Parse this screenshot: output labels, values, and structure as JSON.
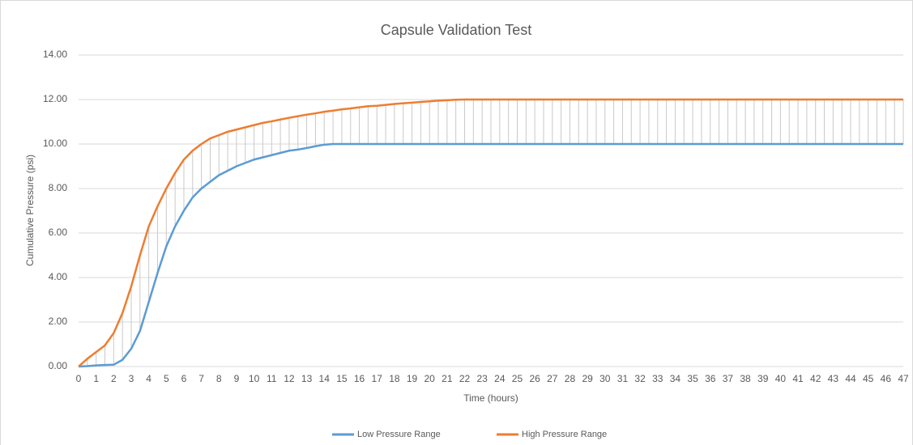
{
  "chart_data": {
    "type": "hilo_line",
    "title": "Capsule Validation Test",
    "x_label": "Time (hours)",
    "y_label": "Cumulative Pressure (psi)",
    "x": [
      0,
      0.5,
      1,
      1.5,
      2,
      2.5,
      3,
      3.5,
      4,
      4.5,
      5,
      5.5,
      6,
      6.5,
      7,
      7.5,
      8,
      8.5,
      9,
      9.5,
      10,
      10.5,
      11,
      11.5,
      12,
      12.5,
      13,
      13.5,
      14,
      14.5,
      15,
      15.5,
      16,
      16.5,
      17,
      17.5,
      18,
      18.5,
      19,
      19.5,
      20,
      20.5,
      21,
      21.5,
      22,
      22.5,
      23,
      23.5,
      24,
      24.5,
      25,
      25.5,
      26,
      26.5,
      27,
      27.5,
      28,
      28.5,
      29,
      29.5,
      30,
      30.5,
      31,
      31.5,
      32,
      32.5,
      33,
      33.5,
      34,
      34.5,
      35,
      35.5,
      36,
      36.5,
      37,
      37.5,
      38,
      38.5,
      39,
      39.5,
      40,
      40.5,
      41,
      41.5,
      42,
      42.5,
      43,
      43.5,
      44,
      44.5,
      45,
      45.5,
      46,
      46.5,
      47
    ],
    "series": [
      {
        "name": "Low Pressure Range",
        "color": "#5b9bd5",
        "values": [
          0,
          0.02,
          0.05,
          0.07,
          0.08,
          0.3,
          0.8,
          1.6,
          2.9,
          4.2,
          5.4,
          6.3,
          7,
          7.6,
          8,
          8.3,
          8.6,
          8.8,
          9,
          9.15,
          9.3,
          9.4,
          9.5,
          9.6,
          9.7,
          9.75,
          9.82,
          9.9,
          9.97,
          10,
          10,
          10,
          10,
          10,
          10,
          10,
          10,
          10,
          10,
          10,
          10,
          10,
          10,
          10,
          10,
          10,
          10,
          10,
          10,
          10,
          10,
          10,
          10,
          10,
          10,
          10,
          10,
          10,
          10,
          10,
          10,
          10,
          10,
          10,
          10,
          10,
          10,
          10,
          10,
          10,
          10,
          10,
          10,
          10,
          10,
          10,
          10,
          10,
          10,
          10,
          10,
          10,
          10,
          10,
          10,
          10,
          10,
          10,
          10,
          10,
          10,
          10,
          10,
          10,
          10
        ]
      },
      {
        "name": "High Pressure Range",
        "color": "#ed7d31",
        "values": [
          0,
          0.35,
          0.65,
          0.95,
          1.5,
          2.4,
          3.6,
          5,
          6.3,
          7.2,
          8,
          8.7,
          9.3,
          9.7,
          10,
          10.25,
          10.4,
          10.55,
          10.65,
          10.75,
          10.85,
          10.95,
          11.02,
          11.1,
          11.18,
          11.25,
          11.32,
          11.38,
          11.45,
          11.5,
          11.56,
          11.6,
          11.65,
          11.7,
          11.72,
          11.76,
          11.8,
          11.83,
          11.86,
          11.89,
          11.92,
          11.95,
          11.97,
          11.99,
          12,
          12,
          12,
          12,
          12,
          12,
          12,
          12,
          12,
          12,
          12,
          12,
          12,
          12,
          12,
          12,
          12,
          12,
          12,
          12,
          12,
          12,
          12,
          12,
          12,
          12,
          12,
          12,
          12,
          12,
          12,
          12,
          12,
          12,
          12,
          12,
          12,
          12,
          12,
          12,
          12,
          12,
          12,
          12,
          12,
          12,
          12,
          12,
          12,
          12,
          12
        ]
      }
    ],
    "hi_lo_color": "#c9c9c9",
    "xlim": [
      0,
      47
    ],
    "xticks": [
      0,
      1,
      2,
      3,
      4,
      5,
      6,
      7,
      8,
      9,
      10,
      11,
      12,
      13,
      14,
      15,
      16,
      17,
      18,
      19,
      20,
      21,
      22,
      23,
      24,
      25,
      26,
      27,
      28,
      29,
      30,
      31,
      32,
      33,
      34,
      35,
      36,
      37,
      38,
      39,
      40,
      41,
      42,
      43,
      44,
      45,
      46,
      47
    ],
    "ylim": [
      0,
      14
    ],
    "yticks": [
      {
        "value": 0,
        "label": "0.00"
      },
      {
        "value": 2,
        "label": "2.00"
      },
      {
        "value": 4,
        "label": "4.00"
      },
      {
        "value": 6,
        "label": "6.00"
      },
      {
        "value": 8,
        "label": "8.00"
      },
      {
        "value": 10,
        "label": "10.00"
      },
      {
        "value": 12,
        "label": "12.00"
      },
      {
        "value": 14,
        "label": "14.00"
      }
    ],
    "grid": true,
    "legend": "bottom"
  }
}
